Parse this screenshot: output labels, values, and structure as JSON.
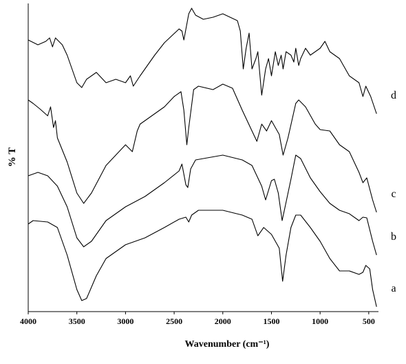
{
  "chart_data": {
    "type": "line",
    "xlabel": "Wavenumber (cm⁻¹)",
    "ylabel": "% T",
    "xlim": [
      4000,
      400
    ],
    "ylim": [
      0,
      447
    ],
    "xticks": [
      4000,
      3500,
      3000,
      2500,
      2000,
      1500,
      1000,
      500
    ],
    "series": [
      {
        "name": "a",
        "color": "#000000",
        "x": [
          4000,
          3950,
          3800,
          3700,
          3600,
          3500,
          3450,
          3400,
          3300,
          3200,
          3000,
          2800,
          2600,
          2450,
          2380,
          2350,
          2320,
          2250,
          2000,
          1800,
          1700,
          1640,
          1580,
          1500,
          1420,
          1385,
          1350,
          1300,
          1250,
          1200,
          1100,
          1000,
          900,
          800,
          700,
          600,
          560,
          530,
          490,
          460,
          420
        ],
        "values": [
          127,
          132,
          130,
          122,
          82,
          32,
          16,
          19,
          52,
          77,
          97,
          107,
          122,
          134,
          137,
          130,
          140,
          147,
          147,
          140,
          134,
          110,
          122,
          112,
          92,
          44,
          82,
          122,
          140,
          140,
          122,
          102,
          77,
          59,
          59,
          54,
          57,
          67,
          62,
          32,
          7
        ]
      },
      {
        "name": "b",
        "color": "#000000",
        "x": [
          4000,
          3900,
          3800,
          3700,
          3600,
          3500,
          3430,
          3350,
          3200,
          3000,
          2800,
          2600,
          2450,
          2420,
          2380,
          2360,
          2330,
          2280,
          2000,
          1800,
          1700,
          1600,
          1560,
          1500,
          1470,
          1430,
          1390,
          1360,
          1300,
          1250,
          1200,
          1100,
          1000,
          900,
          800,
          700,
          600,
          560,
          520,
          460,
          420
        ],
        "values": [
          197,
          202,
          197,
          182,
          152,
          107,
          94,
          102,
          132,
          152,
          167,
          187,
          204,
          214,
          184,
          180,
          207,
          220,
          227,
          220,
          212,
          182,
          162,
          190,
          192,
          172,
          132,
          152,
          192,
          227,
          222,
          194,
          174,
          157,
          147,
          142,
          132,
          137,
          136,
          102,
          82
        ]
      },
      {
        "name": "c",
        "color": "#000000",
        "x": [
          4000,
          3950,
          3880,
          3800,
          3770,
          3740,
          3720,
          3700,
          3600,
          3500,
          3430,
          3350,
          3200,
          3000,
          2930,
          2880,
          2850,
          2800,
          2600,
          2500,
          2430,
          2400,
          2370,
          2350,
          2300,
          2250,
          2100,
          2000,
          1900,
          1800,
          1700,
          1650,
          1600,
          1550,
          1500,
          1480,
          1420,
          1380,
          1330,
          1250,
          1220,
          1150,
          1050,
          1000,
          900,
          800,
          700,
          600,
          560,
          520,
          460,
          420
        ],
        "values": [
          307,
          302,
          294,
          284,
          297,
          267,
          277,
          252,
          217,
          172,
          157,
          172,
          212,
          242,
          232,
          262,
          272,
          277,
          297,
          312,
          319,
          292,
          242,
          267,
          322,
          327,
          322,
          330,
          324,
          292,
          262,
          247,
          272,
          262,
          277,
          272,
          257,
          227,
          252,
          302,
          307,
          297,
          272,
          264,
          262,
          242,
          232,
          202,
          187,
          194,
          162,
          144
        ]
      },
      {
        "name": "d",
        "color": "#000000",
        "x": [
          4000,
          3900,
          3820,
          3780,
          3750,
          3720,
          3650,
          3600,
          3500,
          3450,
          3400,
          3300,
          3200,
          3100,
          3000,
          2950,
          2920,
          2850,
          2700,
          2600,
          2450,
          2420,
          2400,
          2350,
          2320,
          2280,
          2200,
          2100,
          2000,
          1850,
          1820,
          1790,
          1760,
          1730,
          1700,
          1660,
          1640,
          1600,
          1560,
          1530,
          1500,
          1460,
          1430,
          1400,
          1380,
          1350,
          1300,
          1270,
          1250,
          1220,
          1200,
          1150,
          1100,
          1000,
          950,
          900,
          800,
          700,
          600,
          560,
          530,
          480,
          420
        ],
        "values": [
          394,
          387,
          392,
          397,
          384,
          397,
          387,
          372,
          332,
          325,
          337,
          347,
          332,
          337,
          332,
          342,
          327,
          342,
          372,
          390,
          410,
          407,
          394,
          432,
          440,
          430,
          424,
          427,
          432,
          422,
          407,
          352,
          382,
          404,
          352,
          367,
          377,
          314,
          352,
          367,
          342,
          377,
          357,
          372,
          352,
          377,
          372,
          362,
          382,
          357,
          367,
          382,
          372,
          382,
          392,
          377,
          367,
          342,
          332,
          312,
          327,
          312,
          287
        ]
      }
    ]
  }
}
